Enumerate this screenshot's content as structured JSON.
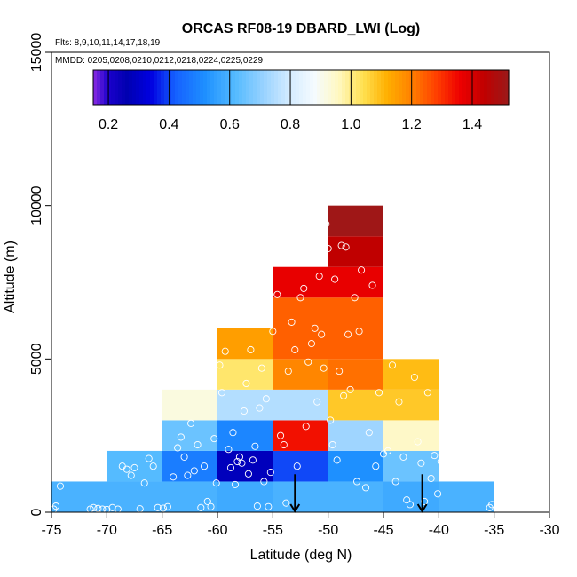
{
  "chart_data": {
    "type": "heatmap",
    "title": "ORCAS RF08-19 DBARD_LWI (Log)",
    "flights_label": "Flts: 8,9,10,11,14,17,18,19",
    "mmdd_label": "MMDD: 0205,0208,0210,0212,0218,0224,0225,0229",
    "xlabel": "Latitude (deg N)",
    "ylabel": "Altitude (m)",
    "xlim": [
      -75,
      -30
    ],
    "ylim": [
      0,
      15000
    ],
    "x_ticks": [
      -75,
      -70,
      -65,
      -60,
      -55,
      -50,
      -45,
      -40,
      -35,
      -30
    ],
    "y_ticks": [
      0,
      5000,
      10000,
      15000
    ],
    "colorbar": {
      "range": [
        0.15,
        1.52
      ],
      "ticks": [
        0.2,
        0.4,
        0.6,
        0.8,
        1.0,
        1.2,
        1.4
      ],
      "tick_labels": [
        "0.2",
        "0.4",
        "0.6",
        "0.8",
        "1.0",
        "1.2",
        "1.4"
      ],
      "stops": [
        [
          0.15,
          "#8a2be2"
        ],
        [
          0.2,
          "#1a00cc"
        ],
        [
          0.26,
          "#0000b0"
        ],
        [
          0.34,
          "#0000e0"
        ],
        [
          0.42,
          "#1560ff"
        ],
        [
          0.52,
          "#1e90ff"
        ],
        [
          0.62,
          "#55bbff"
        ],
        [
          0.72,
          "#9fd5ff"
        ],
        [
          0.8,
          "#d5ecff"
        ],
        [
          0.88,
          "#f5fbff"
        ],
        [
          0.96,
          "#fff8c0"
        ],
        [
          1.04,
          "#ffe050"
        ],
        [
          1.12,
          "#ffb000"
        ],
        [
          1.2,
          "#ff8000"
        ],
        [
          1.28,
          "#ff4000"
        ],
        [
          1.36,
          "#ee0000"
        ],
        [
          1.44,
          "#c00000"
        ],
        [
          1.52,
          "#9a1a1a"
        ]
      ]
    },
    "cells": [
      {
        "lat": [
          -75,
          -70
        ],
        "alt": [
          0,
          1000
        ],
        "value": 0.6
      },
      {
        "lat": [
          -70,
          -65
        ],
        "alt": [
          0,
          1000
        ],
        "value": 0.6
      },
      {
        "lat": [
          -70,
          -65
        ],
        "alt": [
          1000,
          2000
        ],
        "value": 0.62
      },
      {
        "lat": [
          -65,
          -60
        ],
        "alt": [
          0,
          1000
        ],
        "value": 0.6
      },
      {
        "lat": [
          -65,
          -60
        ],
        "alt": [
          1000,
          2000
        ],
        "value": 0.48
      },
      {
        "lat": [
          -65,
          -60
        ],
        "alt": [
          2000,
          3000
        ],
        "value": 0.65
      },
      {
        "lat": [
          -65,
          -60
        ],
        "alt": [
          3000,
          4000
        ],
        "value": 0.92
      },
      {
        "lat": [
          -60,
          -55
        ],
        "alt": [
          0,
          1000
        ],
        "value": 0.58
      },
      {
        "lat": [
          -60,
          -55
        ],
        "alt": [
          1000,
          2000
        ],
        "value": 0.28
      },
      {
        "lat": [
          -60,
          -55
        ],
        "alt": [
          2000,
          3000
        ],
        "value": 0.5
      },
      {
        "lat": [
          -60,
          -55
        ],
        "alt": [
          3000,
          4000
        ],
        "value": 0.75
      },
      {
        "lat": [
          -60,
          -55
        ],
        "alt": [
          4000,
          5000
        ],
        "value": 1.02
      },
      {
        "lat": [
          -60,
          -55
        ],
        "alt": [
          5000,
          6000
        ],
        "value": 1.15
      },
      {
        "lat": [
          -55,
          -50
        ],
        "alt": [
          0,
          1000
        ],
        "value": 0.6
      },
      {
        "lat": [
          -55,
          -50
        ],
        "alt": [
          1000,
          2000
        ],
        "value": 0.4
      },
      {
        "lat": [
          -55,
          -50
        ],
        "alt": [
          2000,
          3000
        ],
        "value": 1.34
      },
      {
        "lat": [
          -55,
          -50
        ],
        "alt": [
          3000,
          4000
        ],
        "value": 0.75
      },
      {
        "lat": [
          -55,
          -50
        ],
        "alt": [
          4000,
          5000
        ],
        "value": 1.19
      },
      {
        "lat": [
          -55,
          -50
        ],
        "alt": [
          5000,
          7000
        ],
        "value": 1.24
      },
      {
        "lat": [
          -55,
          -50
        ],
        "alt": [
          7000,
          8000
        ],
        "value": 1.37
      },
      {
        "lat": [
          -50,
          -45
        ],
        "alt": [
          0,
          1000
        ],
        "value": 0.6
      },
      {
        "lat": [
          -50,
          -45
        ],
        "alt": [
          1000,
          2000
        ],
        "value": 0.52
      },
      {
        "lat": [
          -50,
          -45
        ],
        "alt": [
          2000,
          3000
        ],
        "value": 0.72
      },
      {
        "lat": [
          -50,
          -45
        ],
        "alt": [
          3000,
          4000
        ],
        "value": 1.08
      },
      {
        "lat": [
          -50,
          -45
        ],
        "alt": [
          4000,
          5000
        ],
        "value": 1.22
      },
      {
        "lat": [
          -50,
          -45
        ],
        "alt": [
          5000,
          7000
        ],
        "value": 1.24
      },
      {
        "lat": [
          -50,
          -45
        ],
        "alt": [
          7000,
          8000
        ],
        "value": 1.37
      },
      {
        "lat": [
          -50,
          -45
        ],
        "alt": [
          8000,
          9000
        ],
        "value": 1.44
      },
      {
        "lat": [
          -50,
          -45
        ],
        "alt": [
          9000,
          10000
        ],
        "value": 1.51
      },
      {
        "lat": [
          -45,
          -40
        ],
        "alt": [
          0,
          1000
        ],
        "value": 0.58
      },
      {
        "lat": [
          -45,
          -40
        ],
        "alt": [
          1000,
          2000
        ],
        "value": 0.65
      },
      {
        "lat": [
          -45,
          -40
        ],
        "alt": [
          2000,
          3000
        ],
        "value": 0.95
      },
      {
        "lat": [
          -45,
          -40
        ],
        "alt": [
          3000,
          4000
        ],
        "value": 1.08
      },
      {
        "lat": [
          -45,
          -40
        ],
        "alt": [
          4000,
          5000
        ],
        "value": 1.1
      },
      {
        "lat": [
          -40,
          -35
        ],
        "alt": [
          0,
          1000
        ],
        "value": 0.6
      }
    ],
    "arrows": [
      {
        "lat": -53,
        "alt_top": 600
      },
      {
        "lat": -41.5,
        "alt_top": 600
      }
    ],
    "points": [
      [
        -74.8,
        100
      ],
      [
        -74.6,
        200
      ],
      [
        -74.2,
        850
      ],
      [
        -71.5,
        100
      ],
      [
        -71.2,
        150
      ],
      [
        -70.8,
        120
      ],
      [
        -70.4,
        100
      ],
      [
        -70.0,
        90
      ],
      [
        -69.5,
        150
      ],
      [
        -69.0,
        100
      ],
      [
        -68.6,
        1500
      ],
      [
        -68.2,
        1400
      ],
      [
        -67.8,
        1200
      ],
      [
        -67.5,
        1450
      ],
      [
        -67.0,
        110
      ],
      [
        -66.6,
        950
      ],
      [
        -66.2,
        1750
      ],
      [
        -65.8,
        1500
      ],
      [
        -65.4,
        150
      ],
      [
        -64.9,
        130
      ],
      [
        -64.5,
        180
      ],
      [
        -64.0,
        1150
      ],
      [
        -63.6,
        2100
      ],
      [
        -63.3,
        2450
      ],
      [
        -63.0,
        1800
      ],
      [
        -62.7,
        1200
      ],
      [
        -62.4,
        2900
      ],
      [
        -62.1,
        1350
      ],
      [
        -61.8,
        2200
      ],
      [
        -61.5,
        150
      ],
      [
        -61.2,
        1500
      ],
      [
        -60.9,
        350
      ],
      [
        -60.6,
        180
      ],
      [
        -60.3,
        2400
      ],
      [
        -60.1,
        950
      ],
      [
        -59.8,
        4800
      ],
      [
        -59.6,
        3900
      ],
      [
        -59.3,
        5250
      ],
      [
        -59.0,
        2050
      ],
      [
        -58.8,
        1450
      ],
      [
        -58.6,
        2600
      ],
      [
        -58.4,
        900
      ],
      [
        -58.2,
        1650
      ],
      [
        -58.0,
        1800
      ],
      [
        -57.8,
        1600
      ],
      [
        -57.6,
        3300
      ],
      [
        -57.4,
        4200
      ],
      [
        -57.2,
        1250
      ],
      [
        -57.0,
        5300
      ],
      [
        -56.8,
        1700
      ],
      [
        -56.6,
        2150
      ],
      [
        -56.4,
        200
      ],
      [
        -56.2,
        3400
      ],
      [
        -56.0,
        4700
      ],
      [
        -55.8,
        1000
      ],
      [
        -55.6,
        3700
      ],
      [
        -55.4,
        180
      ],
      [
        -55.2,
        1300
      ],
      [
        -55.0,
        5900
      ],
      [
        -54.6,
        7100
      ],
      [
        -54.3,
        2500
      ],
      [
        -54.0,
        2200
      ],
      [
        -53.8,
        300
      ],
      [
        -53.6,
        4600
      ],
      [
        -53.3,
        6200
      ],
      [
        -53.0,
        5300
      ],
      [
        -52.8,
        1500
      ],
      [
        -52.5,
        7000
      ],
      [
        -52.2,
        7300
      ],
      [
        -52.0,
        2800
      ],
      [
        -51.8,
        4900
      ],
      [
        -51.5,
        5500
      ],
      [
        -51.2,
        6000
      ],
      [
        -51.0,
        3600
      ],
      [
        -50.8,
        7700
      ],
      [
        -50.6,
        5800
      ],
      [
        -50.4,
        4700
      ],
      [
        -50.2,
        9400
      ],
      [
        -50.0,
        8600
      ],
      [
        -49.8,
        3000
      ],
      [
        -49.6,
        2200
      ],
      [
        -49.4,
        7600
      ],
      [
        -49.2,
        1700
      ],
      [
        -49.0,
        4600
      ],
      [
        -48.8,
        8700
      ],
      [
        -48.6,
        3800
      ],
      [
        -48.4,
        8650
      ],
      [
        -48.2,
        5800
      ],
      [
        -48.0,
        4000
      ],
      [
        -47.6,
        7000
      ],
      [
        -47.4,
        1000
      ],
      [
        -47.2,
        5900
      ],
      [
        -47.0,
        7900
      ],
      [
        -46.6,
        800
      ],
      [
        -46.3,
        2600
      ],
      [
        -46.0,
        7400
      ],
      [
        -45.7,
        1500
      ],
      [
        -45.4,
        3900
      ],
      [
        -45.0,
        1900
      ],
      [
        -44.6,
        2000
      ],
      [
        -44.2,
        4800
      ],
      [
        -43.9,
        1000
      ],
      [
        -43.6,
        3600
      ],
      [
        -43.2,
        1800
      ],
      [
        -42.9,
        400
      ],
      [
        -42.6,
        250
      ],
      [
        -42.2,
        4400
      ],
      [
        -41.9,
        2300
      ],
      [
        -41.6,
        1600
      ],
      [
        -41.3,
        350
      ],
      [
        -41.0,
        3900
      ],
      [
        -40.7,
        1100
      ],
      [
        -40.4,
        1850
      ],
      [
        -40.1,
        600
      ],
      [
        -39.8,
        1650
      ],
      [
        -35.4,
        150
      ],
      [
        -35.2,
        250
      ]
    ]
  }
}
